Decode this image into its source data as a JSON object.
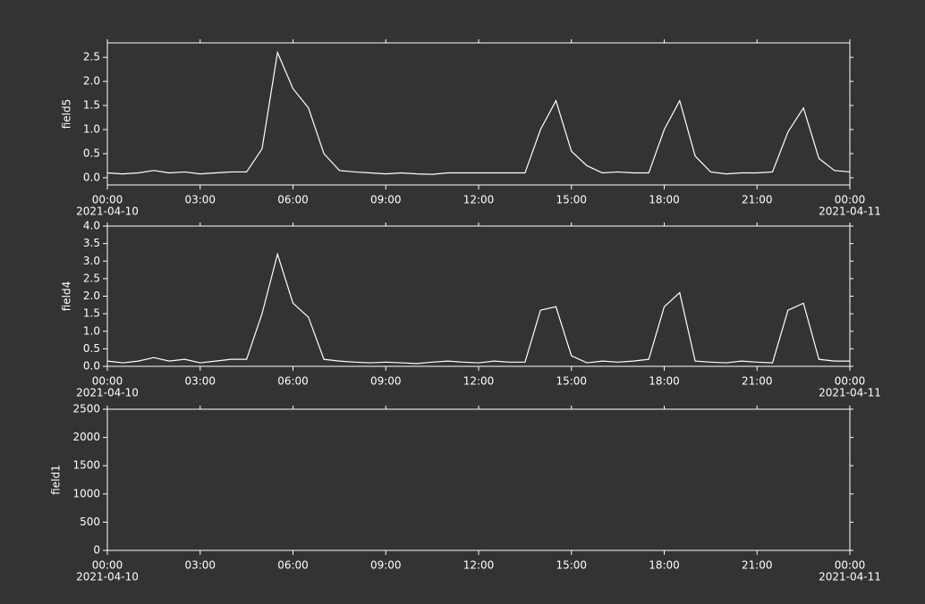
{
  "chart_data": [
    {
      "type": "line",
      "ylabel": "field5",
      "x": [
        "2021-04-10 00:00",
        "2021-04-10 00:30",
        "2021-04-10 01:00",
        "2021-04-10 01:30",
        "2021-04-10 02:00",
        "2021-04-10 02:30",
        "2021-04-10 03:00",
        "2021-04-10 03:30",
        "2021-04-10 04:00",
        "2021-04-10 04:30",
        "2021-04-10 05:00",
        "2021-04-10 05:30",
        "2021-04-10 06:00",
        "2021-04-10 06:30",
        "2021-04-10 07:00",
        "2021-04-10 07:30",
        "2021-04-10 08:00",
        "2021-04-10 08:30",
        "2021-04-10 09:00",
        "2021-04-10 09:30",
        "2021-04-10 10:00",
        "2021-04-10 10:30",
        "2021-04-10 11:00",
        "2021-04-10 11:30",
        "2021-04-10 12:00",
        "2021-04-10 12:30",
        "2021-04-10 13:00",
        "2021-04-10 13:30",
        "2021-04-10 14:00",
        "2021-04-10 14:30",
        "2021-04-10 15:00",
        "2021-04-10 15:30",
        "2021-04-10 16:00",
        "2021-04-10 16:30",
        "2021-04-10 17:00",
        "2021-04-10 17:30",
        "2021-04-10 18:00",
        "2021-04-10 18:30",
        "2021-04-10 19:00",
        "2021-04-10 19:30",
        "2021-04-10 20:00",
        "2021-04-10 20:30",
        "2021-04-10 21:00",
        "2021-04-10 21:30",
        "2021-04-10 22:00",
        "2021-04-10 22:30",
        "2021-04-10 23:00",
        "2021-04-10 23:30",
        "2021-04-11 00:00"
      ],
      "series": [
        {
          "color": "#ffffff",
          "values": [
            0.1,
            0.08,
            0.1,
            0.15,
            0.1,
            0.12,
            0.08,
            0.1,
            0.12,
            0.12,
            0.6,
            2.6,
            1.85,
            1.45,
            0.5,
            0.15,
            0.12,
            0.1,
            0.08,
            0.1,
            0.08,
            0.07,
            0.1,
            0.1,
            0.1,
            0.1,
            0.1,
            0.1,
            1.0,
            1.6,
            0.55,
            0.25,
            0.1,
            0.12,
            0.1,
            0.1,
            1.0,
            1.6,
            0.45,
            0.12,
            0.08,
            0.1,
            0.1,
            0.12,
            0.95,
            1.45,
            0.4,
            0.15,
            0.12
          ]
        }
      ],
      "xlim": [
        "2021-04-10 00:00",
        "2021-04-11 00:00"
      ],
      "xticks": [
        {
          "value": "2021-04-10 00:00",
          "label": "00:00",
          "date": "2021-04-10"
        },
        {
          "value": "2021-04-10 03:00",
          "label": "03:00"
        },
        {
          "value": "2021-04-10 06:00",
          "label": "06:00"
        },
        {
          "value": "2021-04-10 09:00",
          "label": "09:00"
        },
        {
          "value": "2021-04-10 12:00",
          "label": "12:00"
        },
        {
          "value": "2021-04-10 15:00",
          "label": "15:00"
        },
        {
          "value": "2021-04-10 18:00",
          "label": "18:00"
        },
        {
          "value": "2021-04-10 21:00",
          "label": "21:00"
        },
        {
          "value": "2021-04-11 00:00",
          "label": "00:00",
          "date": "2021-04-11"
        }
      ],
      "ylim": [
        -0.15,
        2.8
      ],
      "yticks": [
        {
          "value": 0,
          "label": "0.0"
        },
        0.5,
        {
          "value": 1,
          "label": "1.0"
        },
        1.5,
        {
          "value": 2,
          "label": "2.0"
        },
        2.5
      ]
    },
    {
      "type": "line",
      "ylabel": "field4",
      "x": [
        "2021-04-10 00:00",
        "2021-04-10 00:30",
        "2021-04-10 01:00",
        "2021-04-10 01:30",
        "2021-04-10 02:00",
        "2021-04-10 02:30",
        "2021-04-10 03:00",
        "2021-04-10 03:30",
        "2021-04-10 04:00",
        "2021-04-10 04:30",
        "2021-04-10 05:00",
        "2021-04-10 05:30",
        "2021-04-10 06:00",
        "2021-04-10 06:30",
        "2021-04-10 07:00",
        "2021-04-10 07:30",
        "2021-04-10 08:00",
        "2021-04-10 08:30",
        "2021-04-10 09:00",
        "2021-04-10 09:30",
        "2021-04-10 10:00",
        "2021-04-10 10:30",
        "2021-04-10 11:00",
        "2021-04-10 11:30",
        "2021-04-10 12:00",
        "2021-04-10 12:30",
        "2021-04-10 13:00",
        "2021-04-10 13:30",
        "2021-04-10 14:00",
        "2021-04-10 14:30",
        "2021-04-10 15:00",
        "2021-04-10 15:30",
        "2021-04-10 16:00",
        "2021-04-10 16:30",
        "2021-04-10 17:00",
        "2021-04-10 17:30",
        "2021-04-10 18:00",
        "2021-04-10 18:30",
        "2021-04-10 19:00",
        "2021-04-10 19:30",
        "2021-04-10 20:00",
        "2021-04-10 20:30",
        "2021-04-10 21:00",
        "2021-04-10 21:30",
        "2021-04-10 22:00",
        "2021-04-10 22:30",
        "2021-04-10 23:00",
        "2021-04-10 23:30",
        "2021-04-11 00:00"
      ],
      "series": [
        {
          "color": "#ffffff",
          "values": [
            0.15,
            0.1,
            0.15,
            0.25,
            0.15,
            0.2,
            0.1,
            0.15,
            0.2,
            0.2,
            1.5,
            3.2,
            1.8,
            1.4,
            0.2,
            0.15,
            0.12,
            0.1,
            0.12,
            0.1,
            0.08,
            0.12,
            0.15,
            0.12,
            0.1,
            0.15,
            0.12,
            0.12,
            1.6,
            1.7,
            0.3,
            0.1,
            0.15,
            0.12,
            0.15,
            0.2,
            1.7,
            2.1,
            0.15,
            0.12,
            0.1,
            0.15,
            0.12,
            0.1,
            1.6,
            1.8,
            0.2,
            0.15,
            0.15
          ]
        }
      ],
      "xlim": [
        "2021-04-10 00:00",
        "2021-04-11 00:00"
      ],
      "xticks": [
        {
          "value": "2021-04-10 00:00",
          "label": "00:00",
          "date": "2021-04-10"
        },
        {
          "value": "2021-04-10 03:00",
          "label": "03:00"
        },
        {
          "value": "2021-04-10 06:00",
          "label": "06:00"
        },
        {
          "value": "2021-04-10 09:00",
          "label": "09:00"
        },
        {
          "value": "2021-04-10 12:00",
          "label": "12:00"
        },
        {
          "value": "2021-04-10 15:00",
          "label": "15:00"
        },
        {
          "value": "2021-04-10 18:00",
          "label": "18:00"
        },
        {
          "value": "2021-04-10 21:00",
          "label": "21:00"
        },
        {
          "value": "2021-04-11 00:00",
          "label": "00:00",
          "date": "2021-04-11"
        }
      ],
      "ylim": [
        0,
        4
      ],
      "yticks": [
        {
          "value": 0,
          "label": "0.0"
        },
        0.5,
        {
          "value": 1,
          "label": "1.0"
        },
        1.5,
        {
          "value": 2,
          "label": "2.0"
        },
        2.5,
        {
          "value": 3,
          "label": "3.0"
        },
        3.5,
        {
          "value": 4,
          "label": "4.0"
        }
      ]
    },
    {
      "type": "line",
      "ylabel": "field1",
      "series": [],
      "xlim": [
        "2021-04-10 00:00",
        "2021-04-11 00:00"
      ],
      "xticks": [
        {
          "value": "2021-04-10 00:00",
          "label": "00:00",
          "date": "2021-04-10"
        },
        {
          "value": "2021-04-10 03:00",
          "label": "03:00"
        },
        {
          "value": "2021-04-10 06:00",
          "label": "06:00"
        },
        {
          "value": "2021-04-10 09:00",
          "label": "09:00"
        },
        {
          "value": "2021-04-10 12:00",
          "label": "12:00"
        },
        {
          "value": "2021-04-10 15:00",
          "label": "15:00"
        },
        {
          "value": "2021-04-10 18:00",
          "label": "18:00"
        },
        {
          "value": "2021-04-10 21:00",
          "label": "21:00"
        },
        {
          "value": "2021-04-11 00:00",
          "label": "00:00",
          "date": "2021-04-11"
        }
      ],
      "ylim": [
        0,
        2500
      ],
      "yticks": [
        0,
        500,
        1000,
        1500,
        2000,
        2500
      ]
    }
  ]
}
